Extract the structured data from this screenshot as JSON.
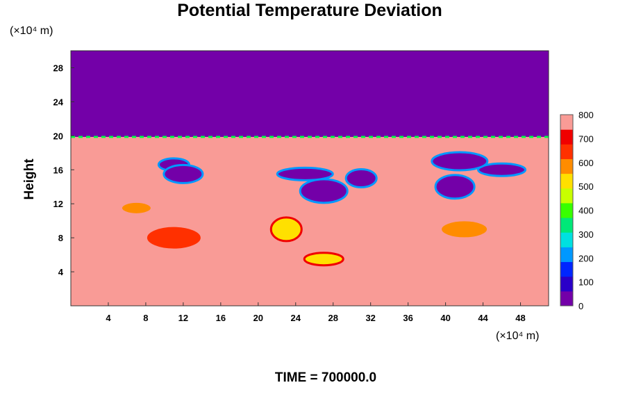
{
  "chart_data": {
    "type": "heatmap",
    "title": "Potential Temperature Deviation",
    "ylabel": "Height",
    "x_unit": "(×10⁴ m)",
    "y_unit": "(×10⁴ m)",
    "xlim": [
      0,
      51
    ],
    "ylim": [
      0,
      30
    ],
    "x_ticks": [
      4,
      8,
      12,
      16,
      20,
      24,
      28,
      32,
      36,
      40,
      44,
      48
    ],
    "y_ticks": [
      4,
      8,
      12,
      16,
      20,
      24,
      28
    ],
    "colorbar": {
      "min": 0,
      "max": 800,
      "ticks": [
        0,
        100,
        200,
        300,
        400,
        500,
        600,
        700,
        800
      ]
    },
    "upper_region": {
      "from_height": 20,
      "value": 0
    },
    "background_value": 800,
    "features": [
      {
        "kind": "blob",
        "x": 11,
        "y": 16.6,
        "value": 0
      },
      {
        "kind": "blob",
        "x": 12,
        "y": 15.5,
        "value": 0
      },
      {
        "kind": "blob",
        "x": 27,
        "y": 13.5,
        "value": 0
      },
      {
        "kind": "blob",
        "x": 25,
        "y": 15.5,
        "value": 0
      },
      {
        "kind": "blob",
        "x": 31,
        "y": 15,
        "value": 0
      },
      {
        "kind": "blob",
        "x": 41,
        "y": 14,
        "value": 0
      },
      {
        "kind": "blob",
        "x": 46,
        "y": 16,
        "value": 0
      },
      {
        "kind": "blob",
        "x": 41.5,
        "y": 17,
        "value": 0
      },
      {
        "kind": "blob",
        "x": 23,
        "y": 9,
        "value": 500
      },
      {
        "kind": "blob",
        "x": 27,
        "y": 5.5,
        "value": 550
      },
      {
        "kind": "blob",
        "x": 42,
        "y": 9,
        "value": 600
      },
      {
        "kind": "blob",
        "x": 11,
        "y": 8,
        "value": 650
      },
      {
        "kind": "blob",
        "x": 7,
        "y": 11.5,
        "value": 600
      }
    ],
    "time_label": "TIME = 700000.0"
  }
}
